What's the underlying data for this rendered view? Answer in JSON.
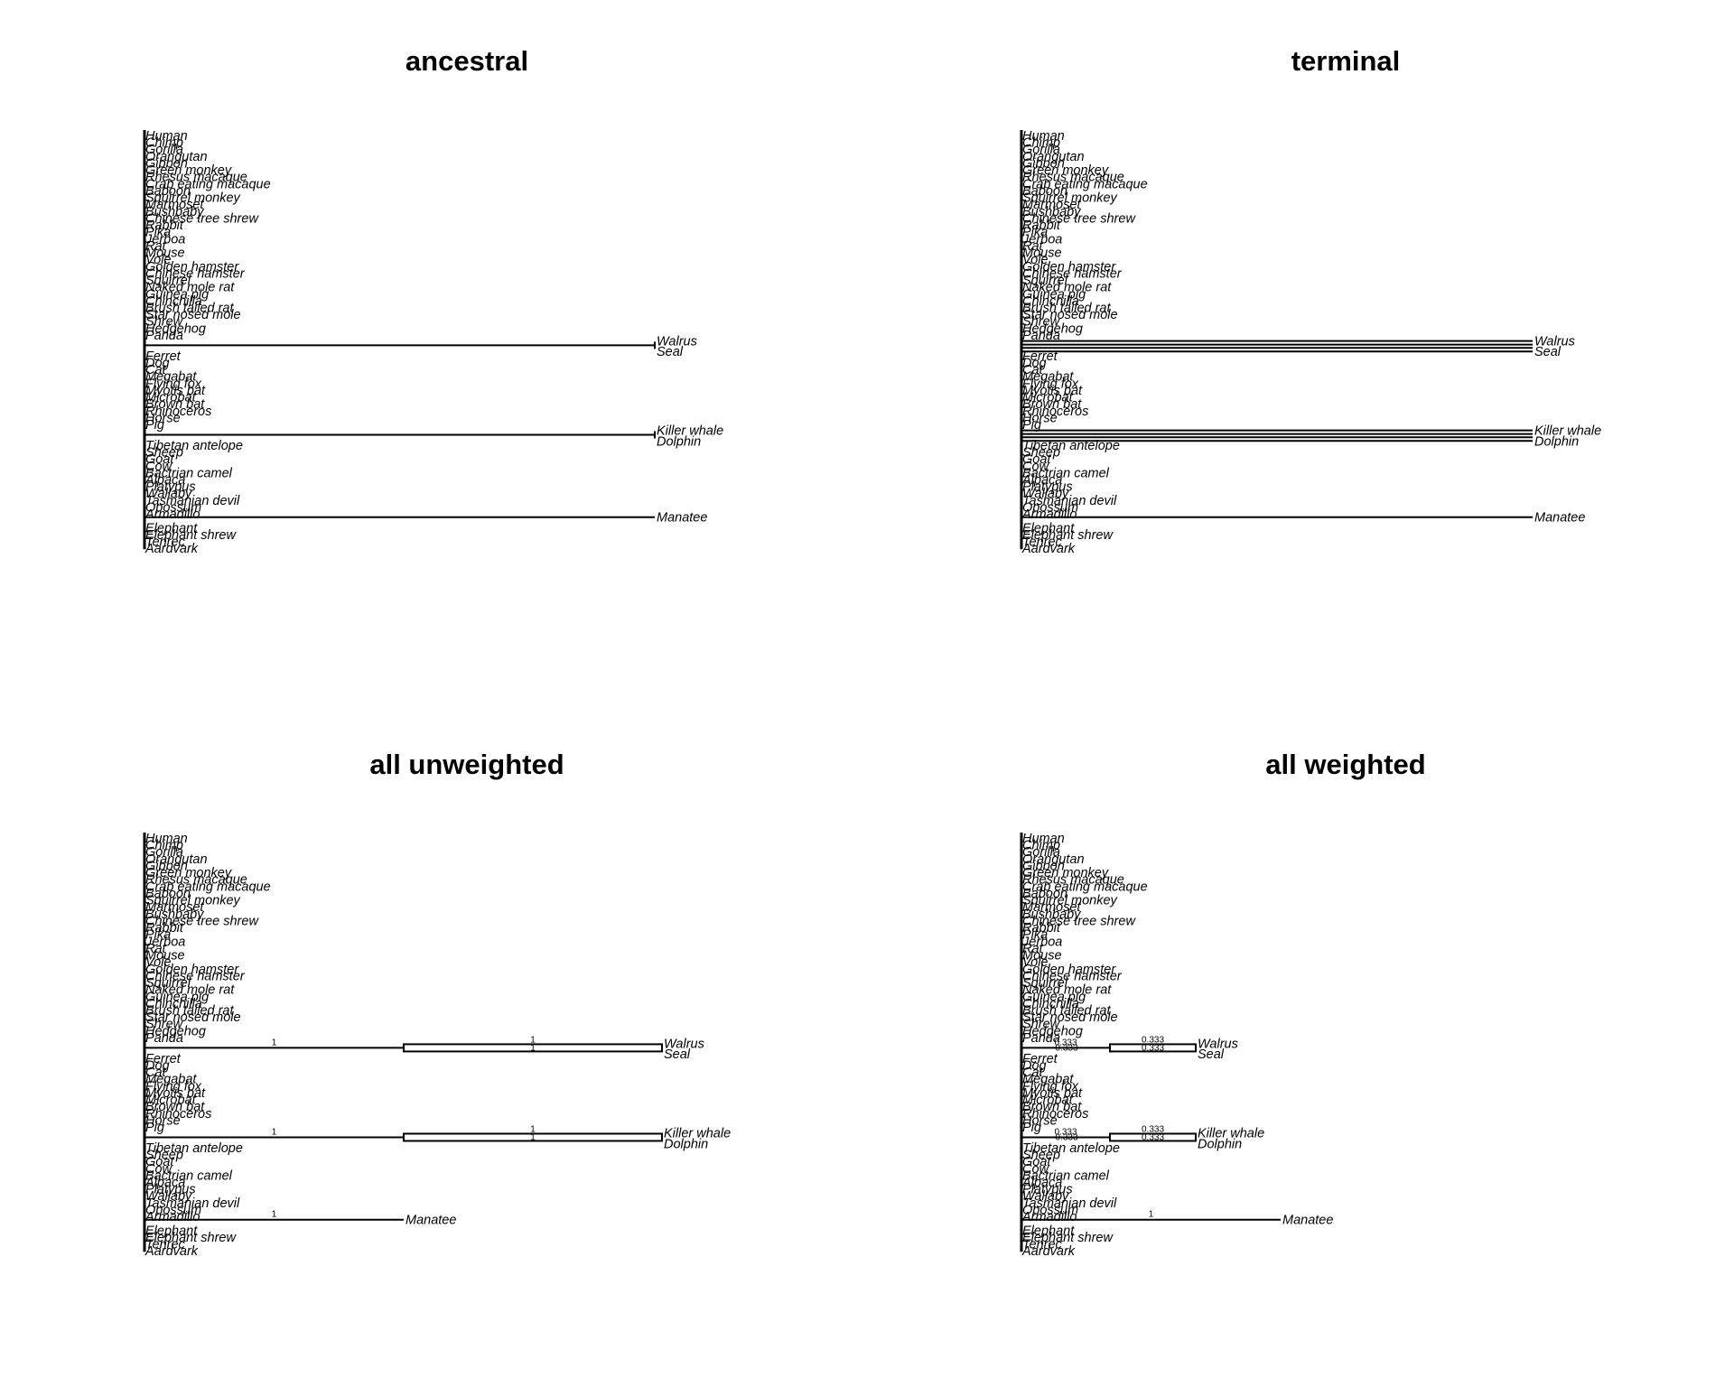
{
  "tip_labels": [
    "Human",
    "Chimp",
    "Gorilla",
    "Orangutan",
    "Gibbon",
    "Green monkey",
    "Rhesus macaque",
    "Crab eating macaque",
    "Baboon",
    "Squirrel monkey",
    "Marmoset",
    "Bushbaby",
    "Chinese tree shrew",
    "Rabbit",
    "Pika",
    "Jerboa",
    "Rat",
    "Mouse",
    "Vole",
    "Golden hamster",
    "Chinese hamster",
    "Squirrel",
    "Naked mole rat",
    "Guinea pig",
    "Chinchilla",
    "Brush tailed rat",
    "Star nosed mole",
    "Shrew",
    "Hedgehog",
    "Panda",
    "Walrus",
    "Seal",
    "Ferret",
    "Dog",
    "Cat",
    "Megabat",
    "Flying fox",
    "Myotis bat",
    "Microbat",
    "Brown bat",
    "Rhinoceros",
    "Horse",
    "Pig",
    "Killer whale",
    "Dolphin",
    "Tibetan antelope",
    "Sheep",
    "Goat",
    "Cow",
    "Bactrian camel",
    "Alpaca",
    "Platypus",
    "Wallaby",
    "Tasmanian devil",
    "Opossum",
    "Armadillo",
    "Manatee",
    "Elephant",
    "Elephant shrew",
    "Tenrec",
    "Aardvark"
  ],
  "panels": [
    {
      "title": "ancestral",
      "foreground": [
        {
          "clade": [
            "Walrus",
            "Seal"
          ],
          "stem": "highlighted",
          "terminals": "plain",
          "stem_label": "",
          "terminal_labels": []
        },
        {
          "clade": [
            "Killer whale",
            "Dolphin"
          ],
          "stem": "highlighted",
          "terminals": "plain",
          "stem_label": "",
          "terminal_labels": []
        },
        {
          "tip": "Manatee",
          "branch": "highlighted",
          "label": ""
        }
      ]
    },
    {
      "title": "terminal",
      "foreground": [
        {
          "clade": [
            "Walrus",
            "Seal"
          ],
          "stem": "plain",
          "terminals": "highlighted",
          "stem_label": "",
          "terminal_labels": []
        },
        {
          "clade": [
            "Killer whale",
            "Dolphin"
          ],
          "stem": "plain",
          "terminals": "highlighted",
          "stem_label": "",
          "terminal_labels": []
        },
        {
          "tip": "Manatee",
          "branch": "highlighted",
          "label": ""
        }
      ]
    },
    {
      "title": "all unweighted",
      "foreground": [
        {
          "clade": [
            "Walrus",
            "Seal"
          ],
          "stem": "highlighted",
          "terminals": "highlighted",
          "stem_label": "1",
          "terminal_labels": [
            "1",
            "1"
          ]
        },
        {
          "clade": [
            "Killer whale",
            "Dolphin"
          ],
          "stem": "highlighted",
          "terminals": "highlighted",
          "stem_label": "1",
          "terminal_labels": [
            "1",
            "1"
          ]
        },
        {
          "tip": "Manatee",
          "branch": "highlighted",
          "label": "1"
        }
      ]
    },
    {
      "title": "all weighted",
      "foreground": [
        {
          "clade": [
            "Walrus",
            "Seal"
          ],
          "stem": "highlighted",
          "terminals": "highlighted",
          "stem_label": "0.333",
          "terminal_labels": [
            "0.333",
            "0.333"
          ]
        },
        {
          "clade": [
            "Killer whale",
            "Dolphin"
          ],
          "stem": "highlighted",
          "terminals": "highlighted",
          "stem_label": "0.333",
          "terminal_labels": [
            "0.333",
            "0.333"
          ]
        },
        {
          "tip": "Manatee",
          "branch": "highlighted",
          "label": "1"
        }
      ]
    }
  ]
}
